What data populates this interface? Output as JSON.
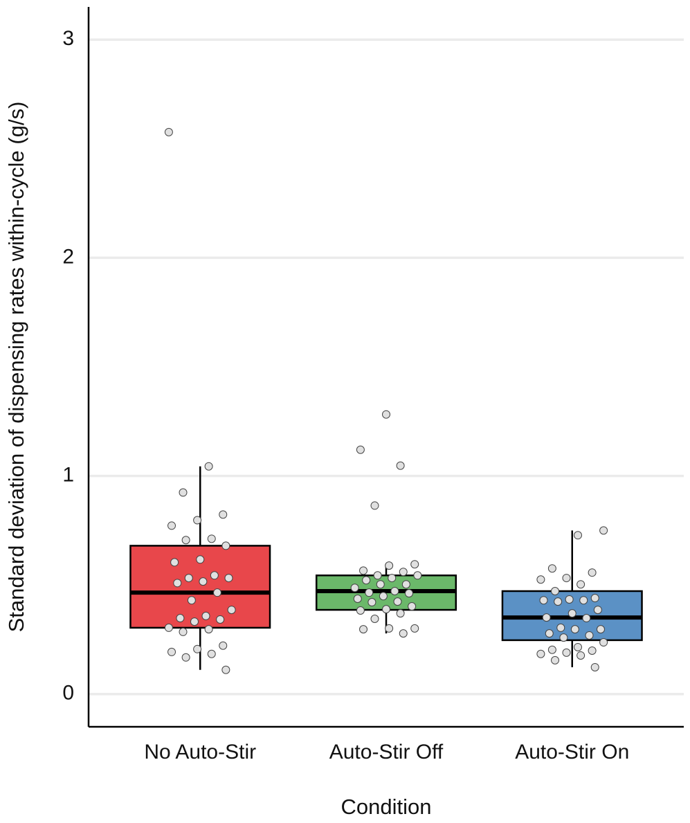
{
  "chart_data": {
    "type": "boxplot",
    "x_label": "Condition",
    "y_label": "Standard deviation of dispensing rates within-cycle (g/s)",
    "categories": [
      "No Auto-Stir",
      "Auto-Stir Off",
      "Auto-Stir On"
    ],
    "ylim": [
      -0.15,
      3.15
    ],
    "yticks": [
      0,
      1,
      2,
      3
    ],
    "grid": true,
    "boxes": [
      {
        "color": "#e8474b",
        "whislo": 0.111,
        "q1": 0.304,
        "med": 0.465,
        "q3": 0.68,
        "whishi": 1.044,
        "points": [
          2.576,
          1.044,
          0.924,
          0.823,
          0.797,
          0.772,
          0.712,
          0.706,
          0.68,
          0.617,
          0.604,
          0.544,
          0.532,
          0.532,
          0.516,
          0.509,
          0.465,
          0.43,
          0.386,
          0.358,
          0.348,
          0.342,
          0.332,
          0.304,
          0.297,
          0.285,
          0.222,
          0.206,
          0.193,
          0.184,
          0.168,
          0.111
        ]
      },
      {
        "color": "#6bb86a",
        "whislo": 0.278,
        "q1": 0.386,
        "med": 0.472,
        "q3": 0.544,
        "whishi": 0.589,
        "points": [
          1.282,
          1.12,
          1.047,
          0.864,
          0.595,
          0.589,
          0.566,
          0.56,
          0.544,
          0.544,
          0.532,
          0.522,
          0.503,
          0.503,
          0.487,
          0.472,
          0.465,
          0.462,
          0.449,
          0.437,
          0.424,
          0.421,
          0.402,
          0.389,
          0.383,
          0.37,
          0.345,
          0.301,
          0.301,
          0.297,
          0.278
        ]
      },
      {
        "color": "#5b91c5",
        "whislo": 0.123,
        "q1": 0.247,
        "med": 0.351,
        "q3": 0.472,
        "whishi": 0.75,
        "points": [
          0.75,
          0.728,
          0.576,
          0.557,
          0.532,
          0.525,
          0.503,
          0.472,
          0.44,
          0.434,
          0.43,
          0.43,
          0.424,
          0.386,
          0.37,
          0.351,
          0.348,
          0.304,
          0.297,
          0.297,
          0.278,
          0.269,
          0.259,
          0.237,
          0.215,
          0.203,
          0.199,
          0.19,
          0.184,
          0.177,
          0.155,
          0.123
        ]
      }
    ]
  }
}
